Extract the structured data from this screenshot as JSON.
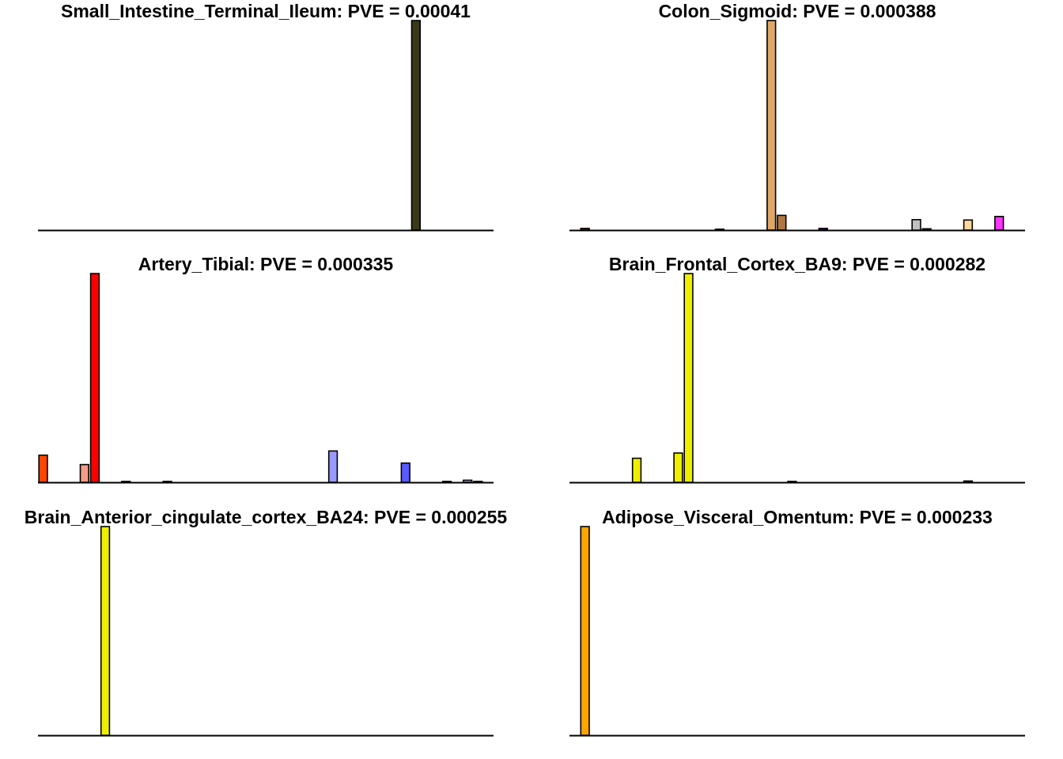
{
  "chart_data": [
    {
      "type": "bar",
      "title": "Small_Intestine_Terminal_Ileum: PVE = 0.00041",
      "n_bars": 44,
      "ylim": [
        0,
        1
      ],
      "bars": [
        {
          "index": 36,
          "value": 1.0,
          "color": "#3a3a1a"
        }
      ]
    },
    {
      "type": "bar",
      "title": "Colon_Sigmoid: PVE = 0.000388",
      "n_bars": 44,
      "ylim": [
        0,
        1
      ],
      "bars": [
        {
          "index": 1,
          "value": 0.008,
          "color": "#8b4513"
        },
        {
          "index": 14,
          "value": 0.004,
          "color": "#555555"
        },
        {
          "index": 19,
          "value": 1.0,
          "color": "#dfa765"
        },
        {
          "index": 20,
          "value": 0.07,
          "color": "#b07840"
        },
        {
          "index": 24,
          "value": 0.008,
          "color": "#6a0dad"
        },
        {
          "index": 33,
          "value": 0.05,
          "color": "#c0c0c0"
        },
        {
          "index": 34,
          "value": 0.006,
          "color": "#333366"
        },
        {
          "index": 38,
          "value": 0.048,
          "color": "#ffd79a"
        },
        {
          "index": 41,
          "value": 0.065,
          "color": "#ff33ff"
        }
      ]
    },
    {
      "type": "bar",
      "title": "Artery_Tibial: PVE = 0.000335",
      "n_bars": 44,
      "ylim": [
        0,
        1
      ],
      "bars": [
        {
          "index": 0,
          "value": 0.13,
          "color": "#ff4500"
        },
        {
          "index": 4,
          "value": 0.085,
          "color": "#f59b86"
        },
        {
          "index": 5,
          "value": 1.0,
          "color": "#ff0000"
        },
        {
          "index": 8,
          "value": 0.004,
          "color": "#555555"
        },
        {
          "index": 12,
          "value": 0.004,
          "color": "#555555"
        },
        {
          "index": 28,
          "value": 0.15,
          "color": "#9999ff"
        },
        {
          "index": 35,
          "value": 0.092,
          "color": "#5b5bff"
        },
        {
          "index": 39,
          "value": 0.004,
          "color": "#555555"
        },
        {
          "index": 41,
          "value": 0.01,
          "color": "#cc99ff"
        },
        {
          "index": 42,
          "value": 0.004,
          "color": "#555555"
        }
      ]
    },
    {
      "type": "bar",
      "title": "Brain_Frontal_Cortex_BA9: PVE = 0.000282",
      "n_bars": 44,
      "ylim": [
        0,
        1
      ],
      "bars": [
        {
          "index": 6,
          "value": 0.115,
          "color": "#eeee00"
        },
        {
          "index": 10,
          "value": 0.14,
          "color": "#eeee00"
        },
        {
          "index": 11,
          "value": 1.0,
          "color": "#eeee00"
        },
        {
          "index": 21,
          "value": 0.004,
          "color": "#555555"
        },
        {
          "index": 38,
          "value": 0.006,
          "color": "#555555"
        }
      ]
    },
    {
      "type": "bar",
      "title": "Brain_Anterior_cingulate_cortex_BA24: PVE = 0.000255",
      "n_bars": 44,
      "ylim": [
        0,
        1
      ],
      "bars": [
        {
          "index": 6,
          "value": 1.0,
          "color": "#eeee00"
        }
      ]
    },
    {
      "type": "bar",
      "title": "Adipose_Visceral_Omentum: PVE = 0.000233",
      "n_bars": 44,
      "ylim": [
        0,
        1
      ],
      "bars": [
        {
          "index": 1,
          "value": 1.0,
          "color": "#ffa500"
        }
      ]
    }
  ]
}
